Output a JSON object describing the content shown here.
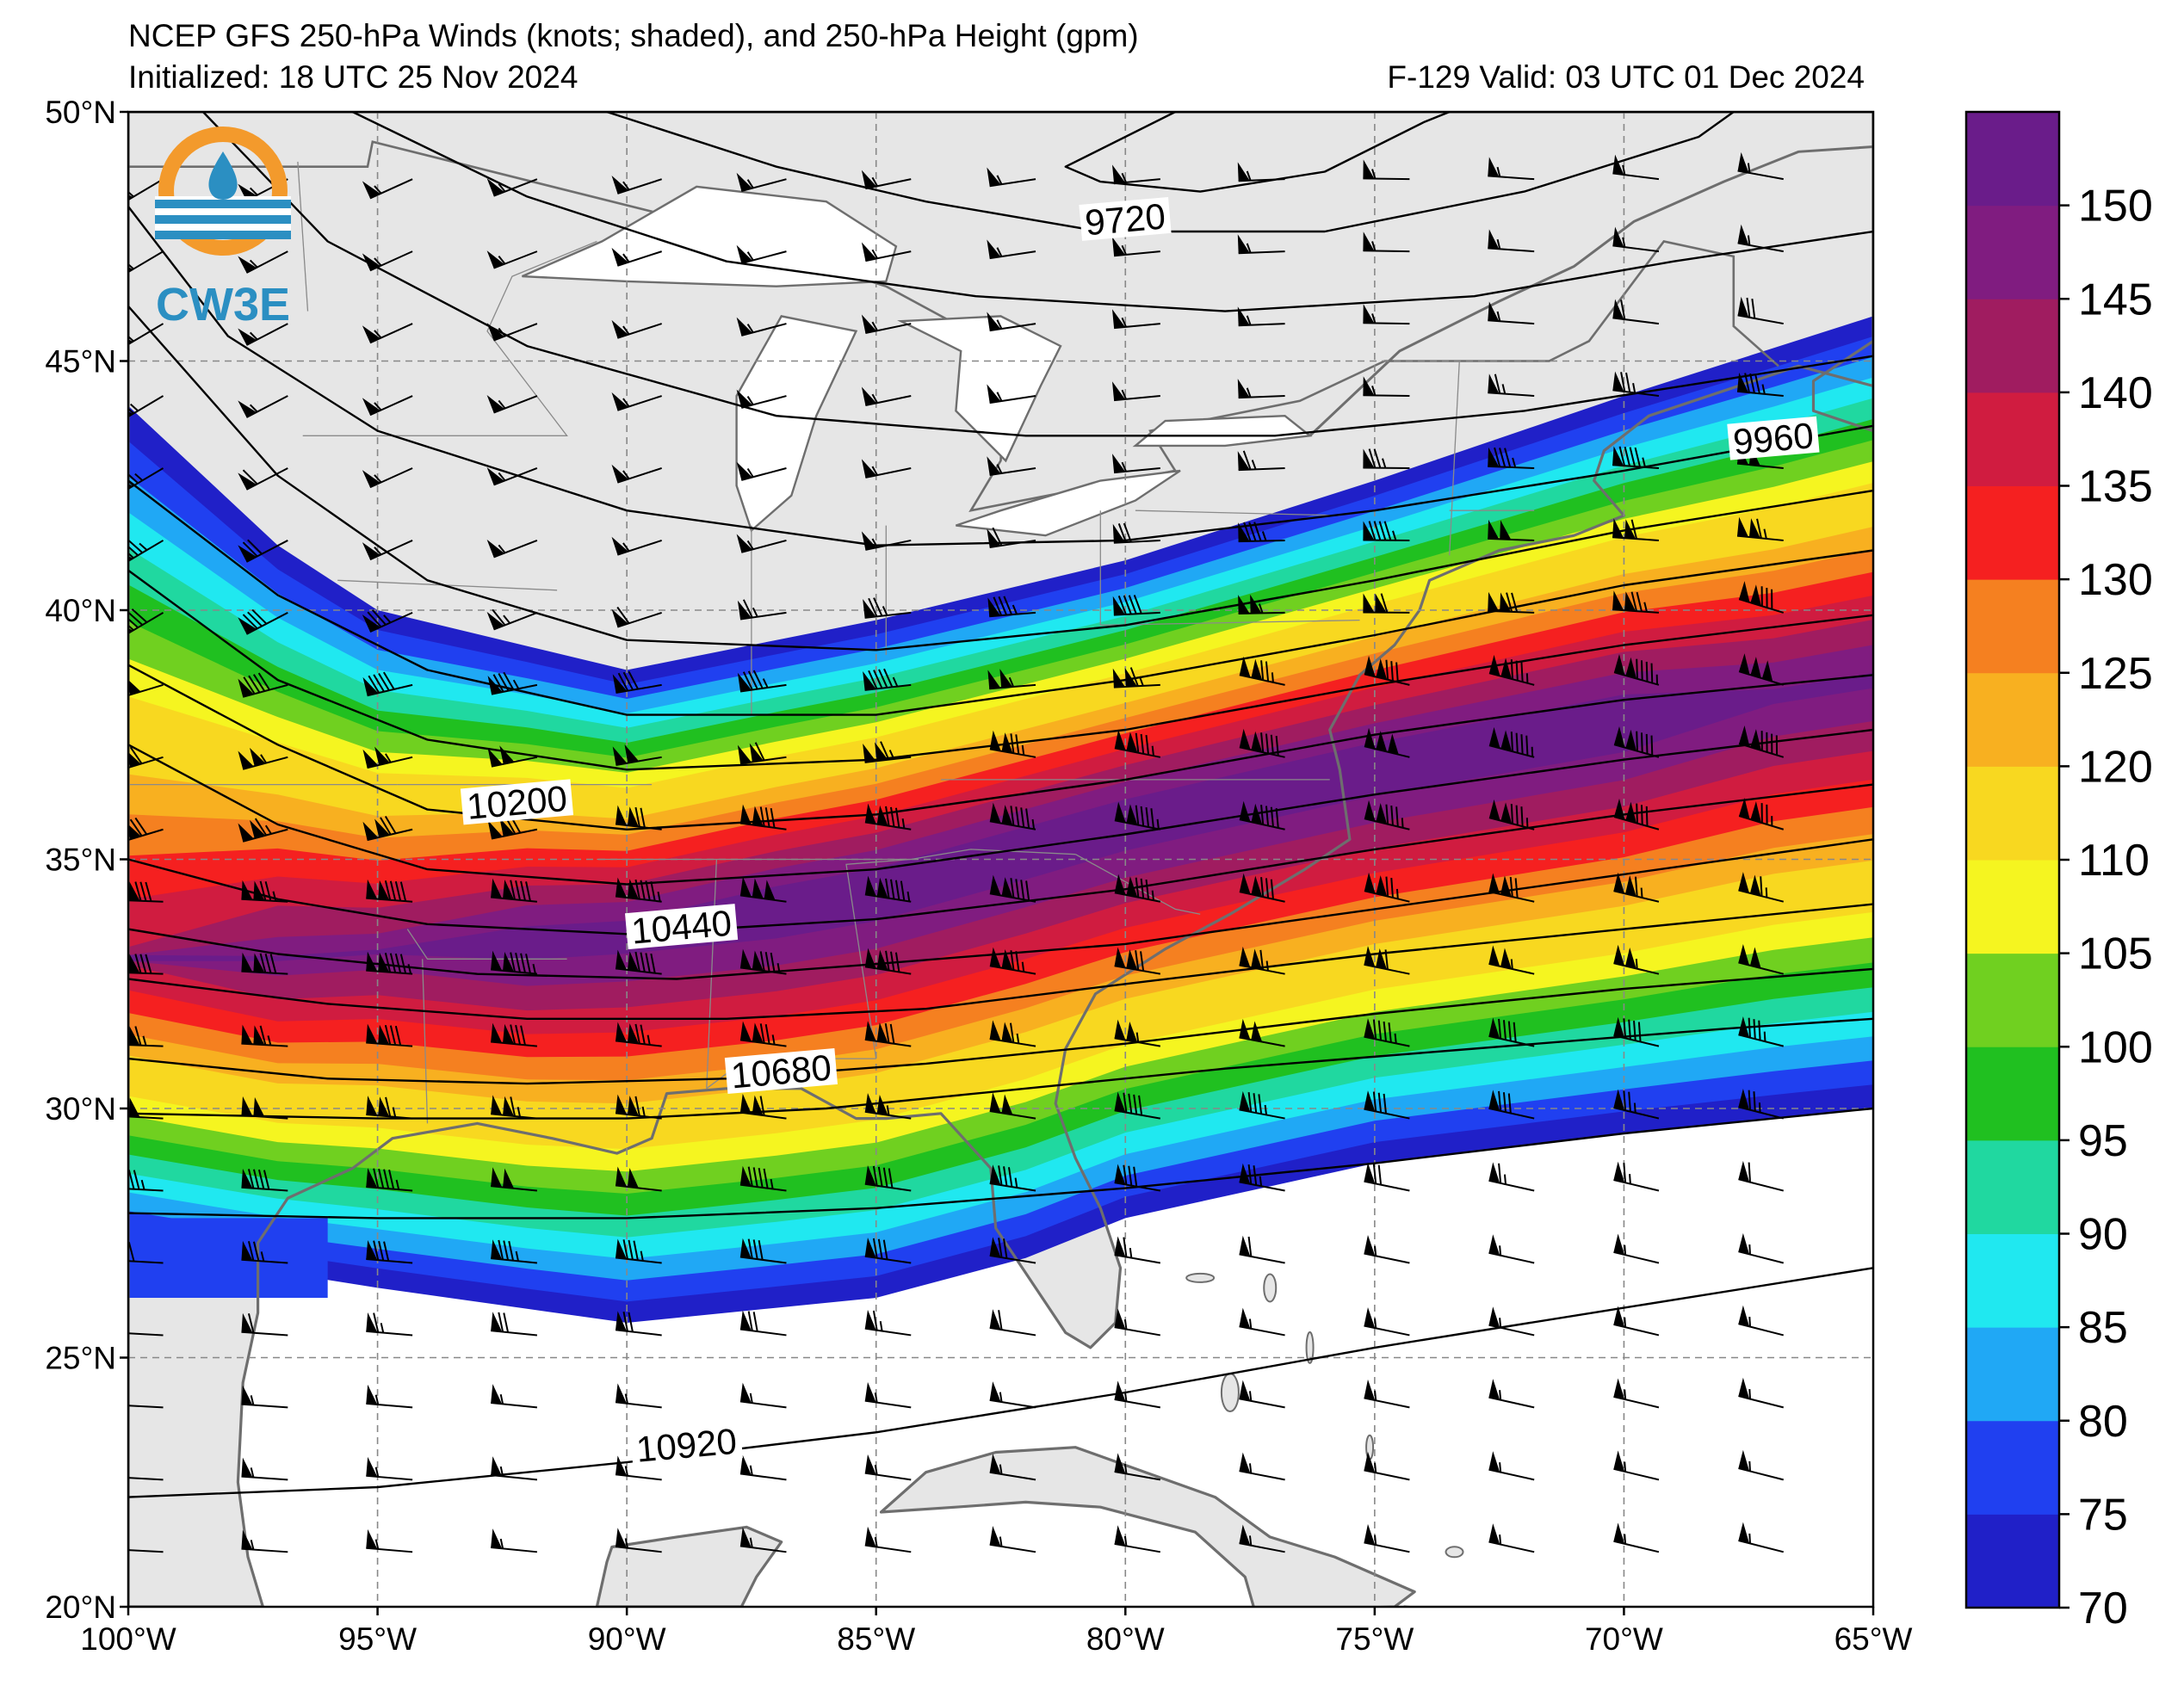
{
  "title": {
    "line1": "NCEP GFS 250-hPa Winds (knots; shaded), and 250-hPa Height (gpm)",
    "initialized": "Initialized: 18 UTC 25 Nov 2024",
    "valid": "F-129  Valid: 03 UTC 01 Dec 2024"
  },
  "logo": {
    "text": "CW3E",
    "colors": {
      "ring": "#f39a2c",
      "drop": "#2b8fc2"
    }
  },
  "map": {
    "lon_range": [
      -100,
      -65
    ],
    "lat_range": [
      20,
      50
    ],
    "lon_ticks": [
      {
        "lon": -100,
        "label": "100°W"
      },
      {
        "lon": -95,
        "label": "95°W"
      },
      {
        "lon": -90,
        "label": "90°W"
      },
      {
        "lon": -85,
        "label": "85°W"
      },
      {
        "lon": -80,
        "label": "80°W"
      },
      {
        "lon": -75,
        "label": "75°W"
      },
      {
        "lon": -70,
        "label": "70°W"
      },
      {
        "lon": -65,
        "label": "65°W"
      }
    ],
    "lat_ticks": [
      {
        "lat": 50,
        "label": "50°N"
      },
      {
        "lat": 45,
        "label": "45°N"
      },
      {
        "lat": 40,
        "label": "40°N"
      },
      {
        "lat": 35,
        "label": "35°N"
      },
      {
        "lat": 30,
        "label": "30°N"
      },
      {
        "lat": 25,
        "label": "25°N"
      },
      {
        "lat": 20,
        "label": "20°N"
      }
    ],
    "grid": true,
    "land_color": "#e6e6e6",
    "ocean_color": "#ffffff",
    "coast_color": "#6e6e6e"
  },
  "colorbar": {
    "levels": [
      70,
      75,
      80,
      85,
      90,
      95,
      100,
      105,
      110,
      120,
      125,
      130,
      135,
      140,
      145,
      150
    ],
    "labels": [
      "70",
      "75",
      "80",
      "85",
      "90",
      "95",
      "100",
      "105",
      "110",
      "120",
      "125",
      "130",
      "135",
      "140",
      "145",
      "150"
    ],
    "colors": [
      "#2020c8",
      "#2040f0",
      "#20a8f5",
      "#20e8f0",
      "#20d8a0",
      "#20c020",
      "#70d020",
      "#f5f520",
      "#f8d820",
      "#f8b020",
      "#f58020",
      "#f52020",
      "#d01c40",
      "#a01c60",
      "#801c80",
      "#6a1c8a"
    ],
    "unit_note": ""
  },
  "chart_data": {
    "type": "contour",
    "field_shaded": "250-hPa wind speed (knots)",
    "field_contour": "250-hPa height (gpm)",
    "contour_labels": [
      {
        "value": "9720",
        "lon": -80.0,
        "lat": 47.8
      },
      {
        "value": "9960",
        "lon": -67.0,
        "lat": 43.4
      },
      {
        "value": "10200",
        "lon": -92.2,
        "lat": 36.1
      },
      {
        "value": "10440",
        "lon": -88.9,
        "lat": 33.6
      },
      {
        "value": "10680",
        "lon": -86.9,
        "lat": 30.7
      },
      {
        "value": "10920",
        "lon": -88.8,
        "lat": 23.2
      }
    ],
    "jet_axis": [
      {
        "lon": -97,
        "lat": 33.0
      },
      {
        "lon": -90,
        "lat": 33.5
      },
      {
        "lon": -85,
        "lat": 34.4
      },
      {
        "lon": -80,
        "lat": 35.8
      },
      {
        "lon": -75,
        "lat": 36.9
      },
      {
        "lon": -70,
        "lat": 37.8
      },
      {
        "lon": -65,
        "lat": 38.6
      }
    ],
    "max_speed_knots": 155,
    "xlim": [
      -100,
      -65
    ],
    "ylim": [
      20,
      50
    ]
  }
}
